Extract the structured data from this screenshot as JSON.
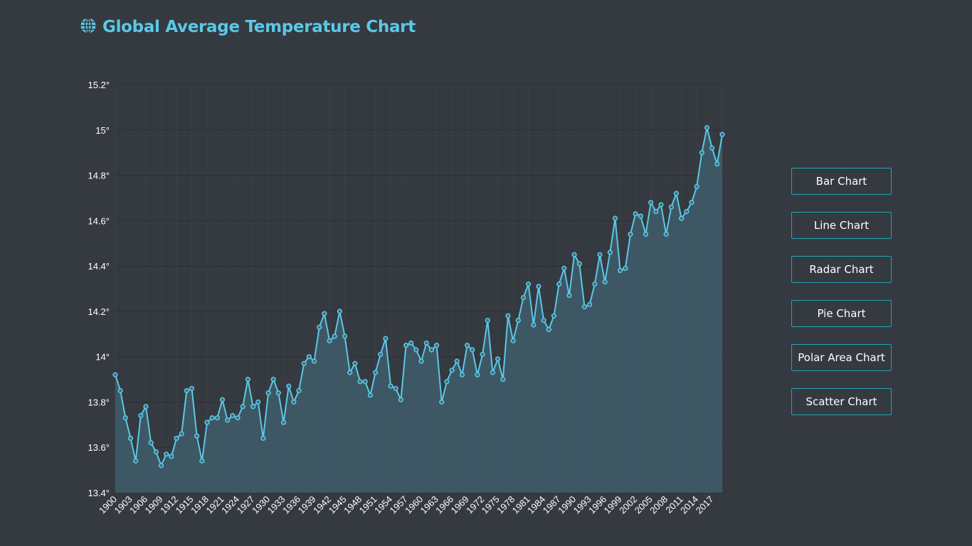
{
  "header": {
    "title": "Global Average Temperature Chart",
    "icon": "globe-icon"
  },
  "buttons": [
    "Bar Chart",
    "Line Chart",
    "Radar Chart",
    "Pie Chart",
    "Polar Area Chart",
    "Scatter Chart"
  ],
  "colors": {
    "background": "#343a40",
    "accent": "#5bc8e8",
    "fill": "#3e5a66",
    "button_border": "#22a6b3"
  },
  "chart_data": {
    "type": "area",
    "x_start": 1900,
    "x_end": 2018,
    "x_tick_labels": [
      "1900",
      "1903",
      "1906",
      "1909",
      "1912",
      "1915",
      "1918",
      "1921",
      "1924",
      "1927",
      "1930",
      "1933",
      "1936",
      "1939",
      "1942",
      "1945",
      "1948",
      "1951",
      "1954",
      "1957",
      "1960",
      "1963",
      "1966",
      "1969",
      "1972",
      "1975",
      "1978",
      "1981",
      "1984",
      "1987",
      "1990",
      "1993",
      "1996",
      "1999",
      "2002",
      "2005",
      "2008",
      "2011",
      "2014",
      "2017"
    ],
    "y_tick_labels": [
      "15.2°",
      "15°",
      "14.8°",
      "14.6°",
      "14.4°",
      "14.2°",
      "14°",
      "13.8°",
      "13.6°",
      "13.4°"
    ],
    "ylim": [
      13.4,
      15.2
    ],
    "y_ticks": [
      15.2,
      15.0,
      14.8,
      14.6,
      14.4,
      14.2,
      14.0,
      13.8,
      13.6,
      13.4
    ],
    "grid": true,
    "values": [
      13.92,
      13.85,
      13.73,
      13.64,
      13.54,
      13.74,
      13.78,
      13.62,
      13.58,
      13.52,
      13.57,
      13.56,
      13.64,
      13.66,
      13.85,
      13.86,
      13.65,
      13.54,
      13.71,
      13.73,
      13.73,
      13.81,
      13.72,
      13.74,
      13.73,
      13.78,
      13.9,
      13.78,
      13.8,
      13.64,
      13.84,
      13.9,
      13.84,
      13.71,
      13.87,
      13.8,
      13.85,
      13.97,
      14.0,
      13.98,
      14.13,
      14.19,
      14.07,
      14.09,
      14.2,
      14.09,
      13.93,
      13.97,
      13.89,
      13.89,
      13.83,
      13.93,
      14.01,
      14.08,
      13.87,
      13.86,
      13.81,
      14.05,
      14.06,
      14.03,
      13.98,
      14.06,
      14.03,
      14.05,
      13.8,
      13.89,
      13.94,
      13.98,
      13.92,
      14.05,
      14.03,
      13.92,
      14.01,
      14.16,
      13.93,
      13.99,
      13.9,
      14.18,
      14.07,
      14.16,
      14.26,
      14.32,
      14.14,
      14.31,
      14.16,
      14.12,
      14.18,
      14.32,
      14.39,
      14.27,
      14.45,
      14.41,
      14.22,
      14.23,
      14.32,
      14.45,
      14.33,
      14.46,
      14.61,
      14.38,
      14.39,
      14.54,
      14.63,
      14.62,
      14.54,
      14.68,
      14.64,
      14.67,
      14.54,
      14.66,
      14.72,
      14.61,
      14.64,
      14.68,
      14.75,
      14.9,
      15.01,
      14.92,
      14.85,
      14.98
    ]
  }
}
